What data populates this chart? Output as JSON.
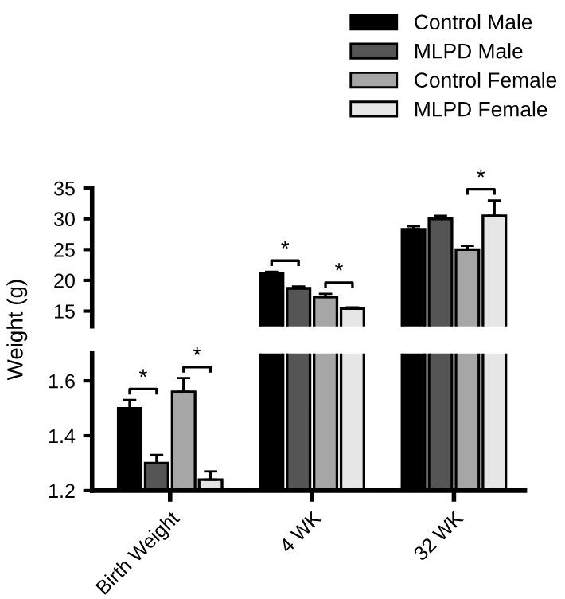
{
  "chart_data": [
    {
      "type": "bar",
      "categories": [
        null,
        null,
        null
      ],
      "tick_labels": "y",
      "ylim": [
        12.5,
        35
      ],
      "yticks": [
        15,
        20,
        25,
        30,
        35
      ],
      "legend": "top right",
      "series": [
        {
          "name": "Control Male",
          "color": "#000000",
          "values": [
            null,
            21.2,
            28.3
          ],
          "errors": [
            null,
            0.2,
            0.5
          ]
        },
        {
          "name": "MLPD Male",
          "color": "#555555",
          "values": [
            null,
            18.7,
            30.0
          ],
          "errors": [
            null,
            0.3,
            0.5
          ]
        },
        {
          "name": "Control Female",
          "color": "#a6a6a6",
          "values": [
            null,
            17.3,
            25.0
          ],
          "errors": [
            null,
            0.5,
            0.6
          ]
        },
        {
          "name": "MLPD Female",
          "color": "#e6e6e6",
          "values": [
            null,
            15.4,
            30.5
          ],
          "errors": [
            null,
            0.2,
            2.5
          ]
        }
      ],
      "annotations": [
        "*",
        "*",
        "*"
      ]
    },
    {
      "type": "bar",
      "categories": [
        "Birth Weight",
        "4 WK",
        "32 WK"
      ],
      "ylim": [
        1.2,
        1.7
      ],
      "yticks": [
        1.2,
        1.4,
        1.6
      ],
      "ylabel": "Weight (g)",
      "series": [
        {
          "color": "#000000",
          "values": [
            1.5,
            null,
            null
          ],
          "errors": [
            0.03,
            null,
            null
          ]
        },
        {
          "color": "#555555",
          "values": [
            1.3,
            null,
            null
          ],
          "errors": [
            0.03,
            null,
            null
          ]
        },
        {
          "color": "#a6a6a6",
          "values": [
            1.56,
            null,
            null
          ],
          "errors": [
            0.05,
            null,
            null
          ]
        },
        {
          "color": "#e6e6e6",
          "values": [
            1.24,
            null,
            null
          ],
          "errors": [
            0.03,
            null,
            null
          ]
        }
      ],
      "annotations": [
        "*",
        "*"
      ]
    }
  ]
}
